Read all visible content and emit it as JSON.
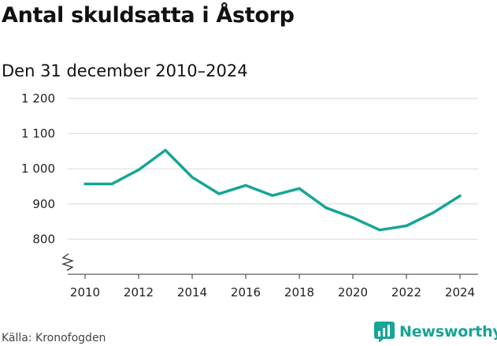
{
  "title": "Antal skuldsatta i Åstorp",
  "subtitle": "Den 31 december 2010–2024",
  "source": "Källa: Kronofogden",
  "brand": {
    "name": "Newsworthy",
    "color": "#16a596",
    "icon": "newsworthy-logo-icon"
  },
  "chart_data": {
    "type": "line",
    "title": "Antal skuldsatta i Åstorp",
    "subtitle": "Den 31 december 2010–2024",
    "xlabel": "",
    "ylabel": "",
    "x": [
      2010,
      2011,
      2012,
      2013,
      2014,
      2015,
      2016,
      2017,
      2018,
      2019,
      2020,
      2021,
      2022,
      2023,
      2024
    ],
    "series": [
      {
        "values": [
          957,
          957,
          997,
          1053,
          976,
          929,
          953,
          924,
          944,
          889,
          861,
          826,
          838,
          875,
          923
        ],
        "color": "#16a596"
      }
    ],
    "ylim": [
      700,
      1200
    ],
    "y_ticks": [
      800,
      900,
      1000,
      1100,
      1200
    ],
    "y_tick_labels": [
      "800",
      "900",
      "1 000",
      "1 100",
      "1 200"
    ],
    "x_ticks": [
      2010,
      2012,
      2014,
      2016,
      2018,
      2020,
      2022,
      2024
    ],
    "x_tick_labels": [
      "2010",
      "2012",
      "2014",
      "2016",
      "2018",
      "2020",
      "2022",
      "2024"
    ],
    "axis_break": true,
    "grid": "horizontal",
    "legend": "none"
  }
}
